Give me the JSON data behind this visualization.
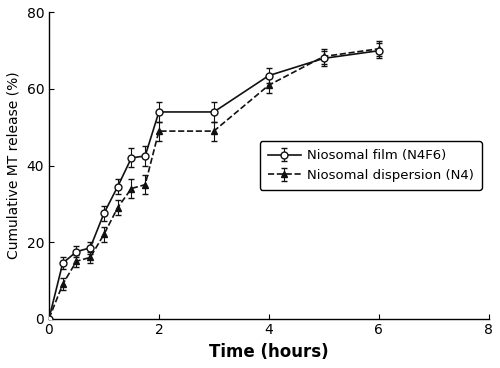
{
  "title": "",
  "xlabel": "Time (hours)",
  "ylabel": "Cumulative MT release (%)",
  "xlim": [
    0,
    8
  ],
  "ylim": [
    0,
    80
  ],
  "xticks": [
    0,
    2,
    4,
    6,
    8
  ],
  "yticks": [
    0,
    20,
    40,
    60,
    80
  ],
  "N4F6_x": [
    0,
    0.25,
    0.5,
    0.75,
    1.0,
    1.25,
    1.5,
    1.75,
    2.0,
    3.0,
    4.0,
    5.0,
    6.0
  ],
  "N4F6_y": [
    0,
    14.5,
    17.5,
    18.5,
    27.5,
    34.5,
    42.0,
    42.5,
    54.0,
    54.0,
    63.5,
    68.0,
    70.0
  ],
  "N4F6_yerr": [
    0,
    1.5,
    1.5,
    1.5,
    2.0,
    2.0,
    2.5,
    2.5,
    2.5,
    2.5,
    2.0,
    2.0,
    2.0
  ],
  "N4_x": [
    0,
    0.25,
    0.5,
    0.75,
    1.0,
    1.25,
    1.5,
    1.75,
    2.0,
    3.0,
    4.0,
    5.0,
    6.0
  ],
  "N4_y": [
    0,
    9.0,
    15.0,
    16.0,
    22.0,
    29.0,
    34.0,
    35.0,
    49.0,
    49.0,
    61.0,
    68.5,
    70.5
  ],
  "N4_yerr": [
    0,
    1.5,
    1.5,
    1.5,
    2.0,
    2.0,
    2.5,
    2.5,
    2.5,
    2.5,
    2.0,
    2.0,
    2.0
  ],
  "line_color": "#111111",
  "legend_labels": [
    "Niosomal film (N4F6)",
    "Niosomal dispersion (N4)"
  ],
  "legend_loc": "center right",
  "xlabel_fontsize": 12,
  "ylabel_fontsize": 10,
  "tick_fontsize": 10,
  "legend_fontsize": 9.5,
  "figure_width": 5.0,
  "figure_height": 3.68,
  "dpi": 100
}
